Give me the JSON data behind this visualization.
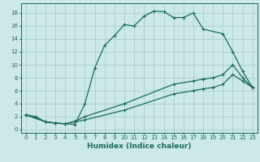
{
  "xlabel": "Humidex (Indice chaleur)",
  "bg_color": "#cce8e8",
  "grid_color": "#aacfcf",
  "line_color": "#1a6b5a",
  "xlim": [
    -0.5,
    23.5
  ],
  "ylim": [
    -0.5,
    19.5
  ],
  "xticks": [
    0,
    1,
    2,
    3,
    4,
    5,
    6,
    7,
    8,
    9,
    10,
    11,
    12,
    13,
    14,
    15,
    16,
    17,
    18,
    19,
    20,
    21,
    22,
    23
  ],
  "yticks": [
    0,
    2,
    4,
    6,
    8,
    10,
    12,
    14,
    16,
    18
  ],
  "line1_x": [
    0,
    1,
    2,
    3,
    4,
    5,
    6,
    7,
    8,
    9,
    10,
    11,
    12,
    13,
    14,
    15,
    16,
    17,
    18,
    20,
    21,
    22,
    23
  ],
  "line1_y": [
    2.3,
    2.0,
    1.2,
    1.0,
    0.9,
    0.8,
    4.0,
    9.5,
    13.0,
    14.5,
    16.2,
    16.0,
    17.5,
    18.3,
    18.2,
    17.3,
    17.3,
    18.0,
    15.5,
    14.8,
    12.0,
    9.0,
    6.5
  ],
  "line2_x": [
    0,
    2,
    3,
    4,
    5,
    6,
    10,
    15,
    17,
    18,
    19,
    20,
    21,
    22,
    23
  ],
  "line2_y": [
    2.3,
    1.2,
    1.0,
    0.9,
    1.2,
    1.5,
    3.0,
    5.5,
    6.0,
    6.3,
    6.5,
    7.0,
    8.5,
    7.5,
    6.5
  ],
  "line3_x": [
    0,
    2,
    3,
    4,
    5,
    6,
    10,
    15,
    17,
    18,
    19,
    20,
    21,
    22,
    23
  ],
  "line3_y": [
    2.3,
    1.2,
    1.0,
    0.9,
    1.3,
    2.0,
    4.0,
    7.0,
    7.5,
    7.8,
    8.0,
    8.5,
    10.0,
    8.0,
    6.5
  ],
  "marker": "+",
  "markersize": 3,
  "linewidth": 0.9
}
